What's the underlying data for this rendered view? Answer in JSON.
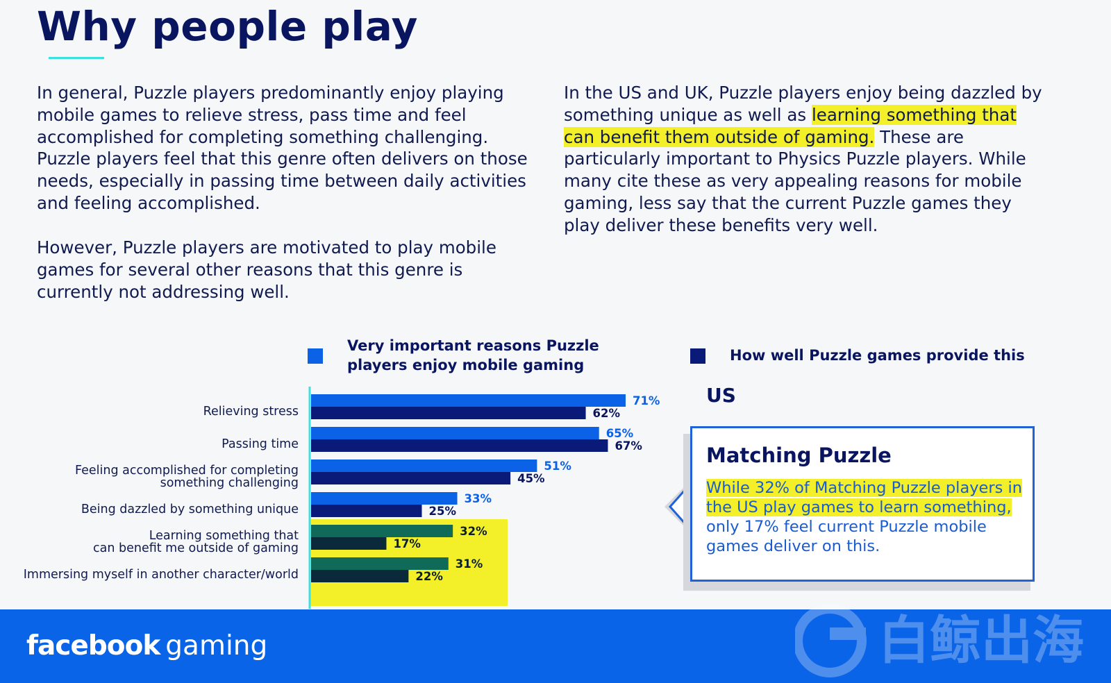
{
  "title": "Why people play",
  "paragraphs": {
    "p1": "In general, Puzzle players predominantly enjoy playing mobile games to relieve stress, pass time and feel accomplished for completing something challenging. Puzzle players feel that this genre often delivers on those needs, especially in passing time between daily activities and feeling accomplished.",
    "p2": "However, Puzzle players are motivated to play mobile games for several other reasons that this genre is currently not addressing well.",
    "p3_pre": "In the US and UK, Puzzle players enjoy being dazzled by something unique as well as ",
    "p3_highlight": "learning something that can benefit them outside of gaming.",
    "p3_post": " These are particularly important to Physics Puzzle players. While many cite these as very appealing reasons for mobile gaming, less say that the current Puzzle games they play deliver these benefits very well."
  },
  "legend": {
    "important": "Very important reasons Puzzle players enjoy mobile gaming",
    "provide": "How well Puzzle games provide this"
  },
  "region": "US",
  "callout": {
    "title": "Matching Puzzle",
    "highlight": "While 32% of Matching Puzzle players in the US play games to learn something,",
    "rest": "only 17% feel current Puzzle mobile games deliver on this."
  },
  "footer": {
    "brand_bold": "facebook",
    "brand_light": "gaming",
    "watermark": "白鲸出海"
  },
  "colors": {
    "important": "#0b62e6",
    "provide": "#0a1a78",
    "important_highlighted": "#0f6b57",
    "provide_highlighted": "#0a2a3c",
    "highlight": "#f3f02a",
    "axis": "#3ee0de"
  },
  "chart_data": {
    "type": "bar",
    "orientation": "horizontal",
    "categories": [
      [
        "Relieving stress"
      ],
      [
        "Passing time"
      ],
      [
        "Feeling accomplished for completing",
        "something challenging"
      ],
      [
        "Being dazzled by something unique"
      ],
      [
        "Learning something that",
        "can benefit me outside of gaming"
      ],
      [
        "Immersing myself in another character/world"
      ]
    ],
    "series": [
      {
        "name": "Very important reasons Puzzle players enjoy mobile gaming",
        "values": [
          71,
          65,
          51,
          33,
          32,
          31
        ],
        "labels": [
          "71%",
          "65%",
          "51%",
          "33%",
          "32%",
          "31%"
        ]
      },
      {
        "name": "How well Puzzle games provide this",
        "values": [
          62,
          67,
          45,
          25,
          17,
          22
        ],
        "labels": [
          "62%",
          "67%",
          "45%",
          "25%",
          "17%",
          "22%"
        ]
      }
    ],
    "highlighted_categories": [
      4,
      5
    ],
    "xlim": [
      0,
      100
    ]
  }
}
